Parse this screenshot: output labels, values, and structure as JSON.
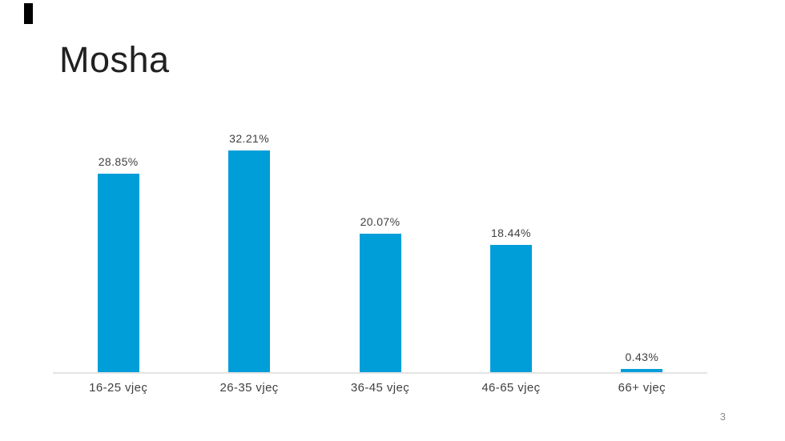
{
  "slide": {
    "title": "Mosha",
    "page_number": "3"
  },
  "colors": {
    "bar": "#009ED9",
    "title_text": "#212121",
    "label_text": "#404040",
    "axis_line": "#e4e4e4",
    "page_number_text": "#8e8e8e",
    "accent_mark": "#000000",
    "background": "#ffffff"
  },
  "chart_data": {
    "type": "bar",
    "title": "Mosha",
    "categories": [
      "16-25 vjeç",
      "26-35 vjeç",
      "36-45 vjeç",
      "46-65 vjeç",
      "66+ vjeç"
    ],
    "values": [
      28.85,
      32.21,
      20.07,
      18.44,
      0.43
    ],
    "value_labels": [
      "28.85%",
      "32.21%",
      "20.07%",
      "18.44%",
      "0.43%"
    ],
    "units": "%",
    "xlabel": "",
    "ylabel": "",
    "ylim": [
      0,
      35
    ],
    "grid": false,
    "legend": false,
    "value_axis_visible": false,
    "bar_color": "#009ED9"
  }
}
